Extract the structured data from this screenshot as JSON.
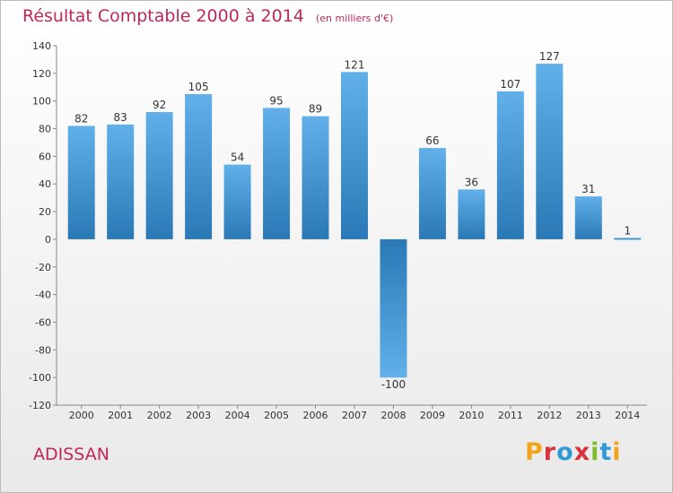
{
  "header": {
    "title": "Résultat Comptable 2000 à 2014",
    "subtitle": "(en milliers d'€)"
  },
  "footer": {
    "commune": "ADISSAN",
    "logo_text": "Proxiti"
  },
  "colors": {
    "title": "#c0285b",
    "bar_dark": "#2a79b6",
    "bar_light": "#62b0ea"
  },
  "chart_data": {
    "type": "bar",
    "categories": [
      "2000",
      "2001",
      "2002",
      "2003",
      "2004",
      "2005",
      "2006",
      "2007",
      "2008",
      "2009",
      "2010",
      "2011",
      "2012",
      "2013",
      "2014"
    ],
    "values": [
      82,
      83,
      92,
      105,
      54,
      95,
      89,
      121,
      -100,
      66,
      36,
      107,
      127,
      31,
      1
    ],
    "data_labels": [
      "82",
      "83",
      "92",
      "105",
      "54",
      "95",
      "89",
      "121",
      "-100",
      "66",
      "36",
      "107",
      "127",
      "31",
      "1"
    ],
    "ylim": [
      -120,
      140
    ],
    "yticks": [
      140,
      120,
      100,
      80,
      60,
      40,
      20,
      0,
      -20,
      -40,
      -60,
      -80,
      -100,
      -120
    ],
    "grid": false
  }
}
